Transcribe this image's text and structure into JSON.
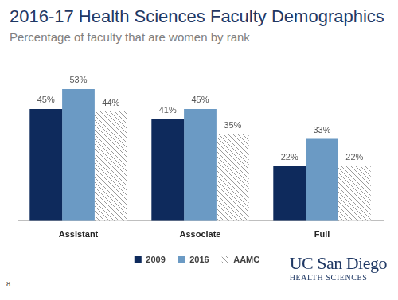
{
  "page_number": 8,
  "logo": {
    "name": "UC San Diego",
    "unit": "HEALTH SCIENCES"
  },
  "chart_data": {
    "type": "bar",
    "title": "2016-17 Health Sciences Faculty Demographics",
    "subtitle": "Percentage of faculty that are women by rank",
    "categories": [
      "Assistant",
      "Associate",
      "Full"
    ],
    "series": [
      {
        "name": "2009",
        "color": "#0e2a5c",
        "values": [
          45,
          41,
          22
        ],
        "value_labels": [
          "45%",
          "41%",
          "22%"
        ]
      },
      {
        "name": "2016",
        "color": "#6b9ac4",
        "values": [
          53,
          45,
          33
        ],
        "value_labels": [
          "53%",
          "45%",
          "33%"
        ]
      },
      {
        "name": "AAMC",
        "color": "#9a9a9a",
        "marker": "hatch",
        "values": [
          44,
          35,
          22
        ],
        "value_labels": [
          "44%",
          "35%",
          "22%"
        ]
      }
    ],
    "ylim": [
      0,
      60
    ],
    "grid": false,
    "legend": "bottom",
    "data_labels": true,
    "tick_labels": "x"
  }
}
